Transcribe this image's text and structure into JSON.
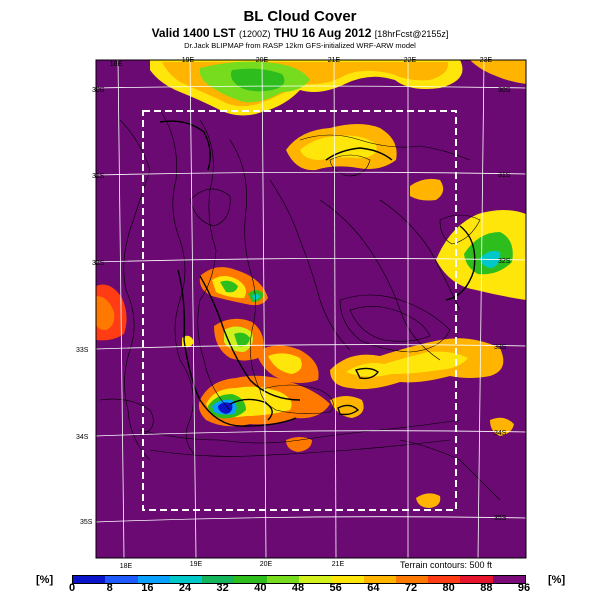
{
  "header": {
    "title": "BL Cloud Cover",
    "valid_main": "Valid 1400 LST",
    "valid_small1": "(1200Z)",
    "valid_day": "THU 16 Aug 2012",
    "valid_small2": "[18hrFcst@2155z]",
    "credit": "Dr.Jack BLIPMAP from RASP 12km GFS-initialized WRF-ARW model"
  },
  "map": {
    "top_lon_labels": [
      "18E",
      "19E",
      "20E",
      "21E",
      "22E",
      "23E"
    ],
    "bottom_lon_labels": [
      "18E",
      "19E",
      "20E",
      "21E"
    ],
    "left_lat_labels": [
      "30S",
      "31S",
      "32S",
      "33S",
      "34S",
      "35S"
    ],
    "right_lat_labels": [
      "30S",
      "31S",
      "32S",
      "33S",
      "34S",
      "35S"
    ],
    "terrain_note": "Terrain contours: 500 ft",
    "background_color": "#6a0a72"
  },
  "colorbar": {
    "unit_label": "[%]",
    "tick_labels": [
      "0",
      "8",
      "16",
      "24",
      "32",
      "40",
      "48",
      "56",
      "64",
      "72",
      "80",
      "88",
      "96"
    ],
    "colors": [
      "#0a14c8",
      "#1e5aff",
      "#0aa0ff",
      "#00c8c8",
      "#14b45a",
      "#2dbe1e",
      "#78dc1e",
      "#d2f01e",
      "#ffe60a",
      "#ffb400",
      "#ff7800",
      "#ff3c14",
      "#e6142d",
      "#7a0a78"
    ]
  }
}
